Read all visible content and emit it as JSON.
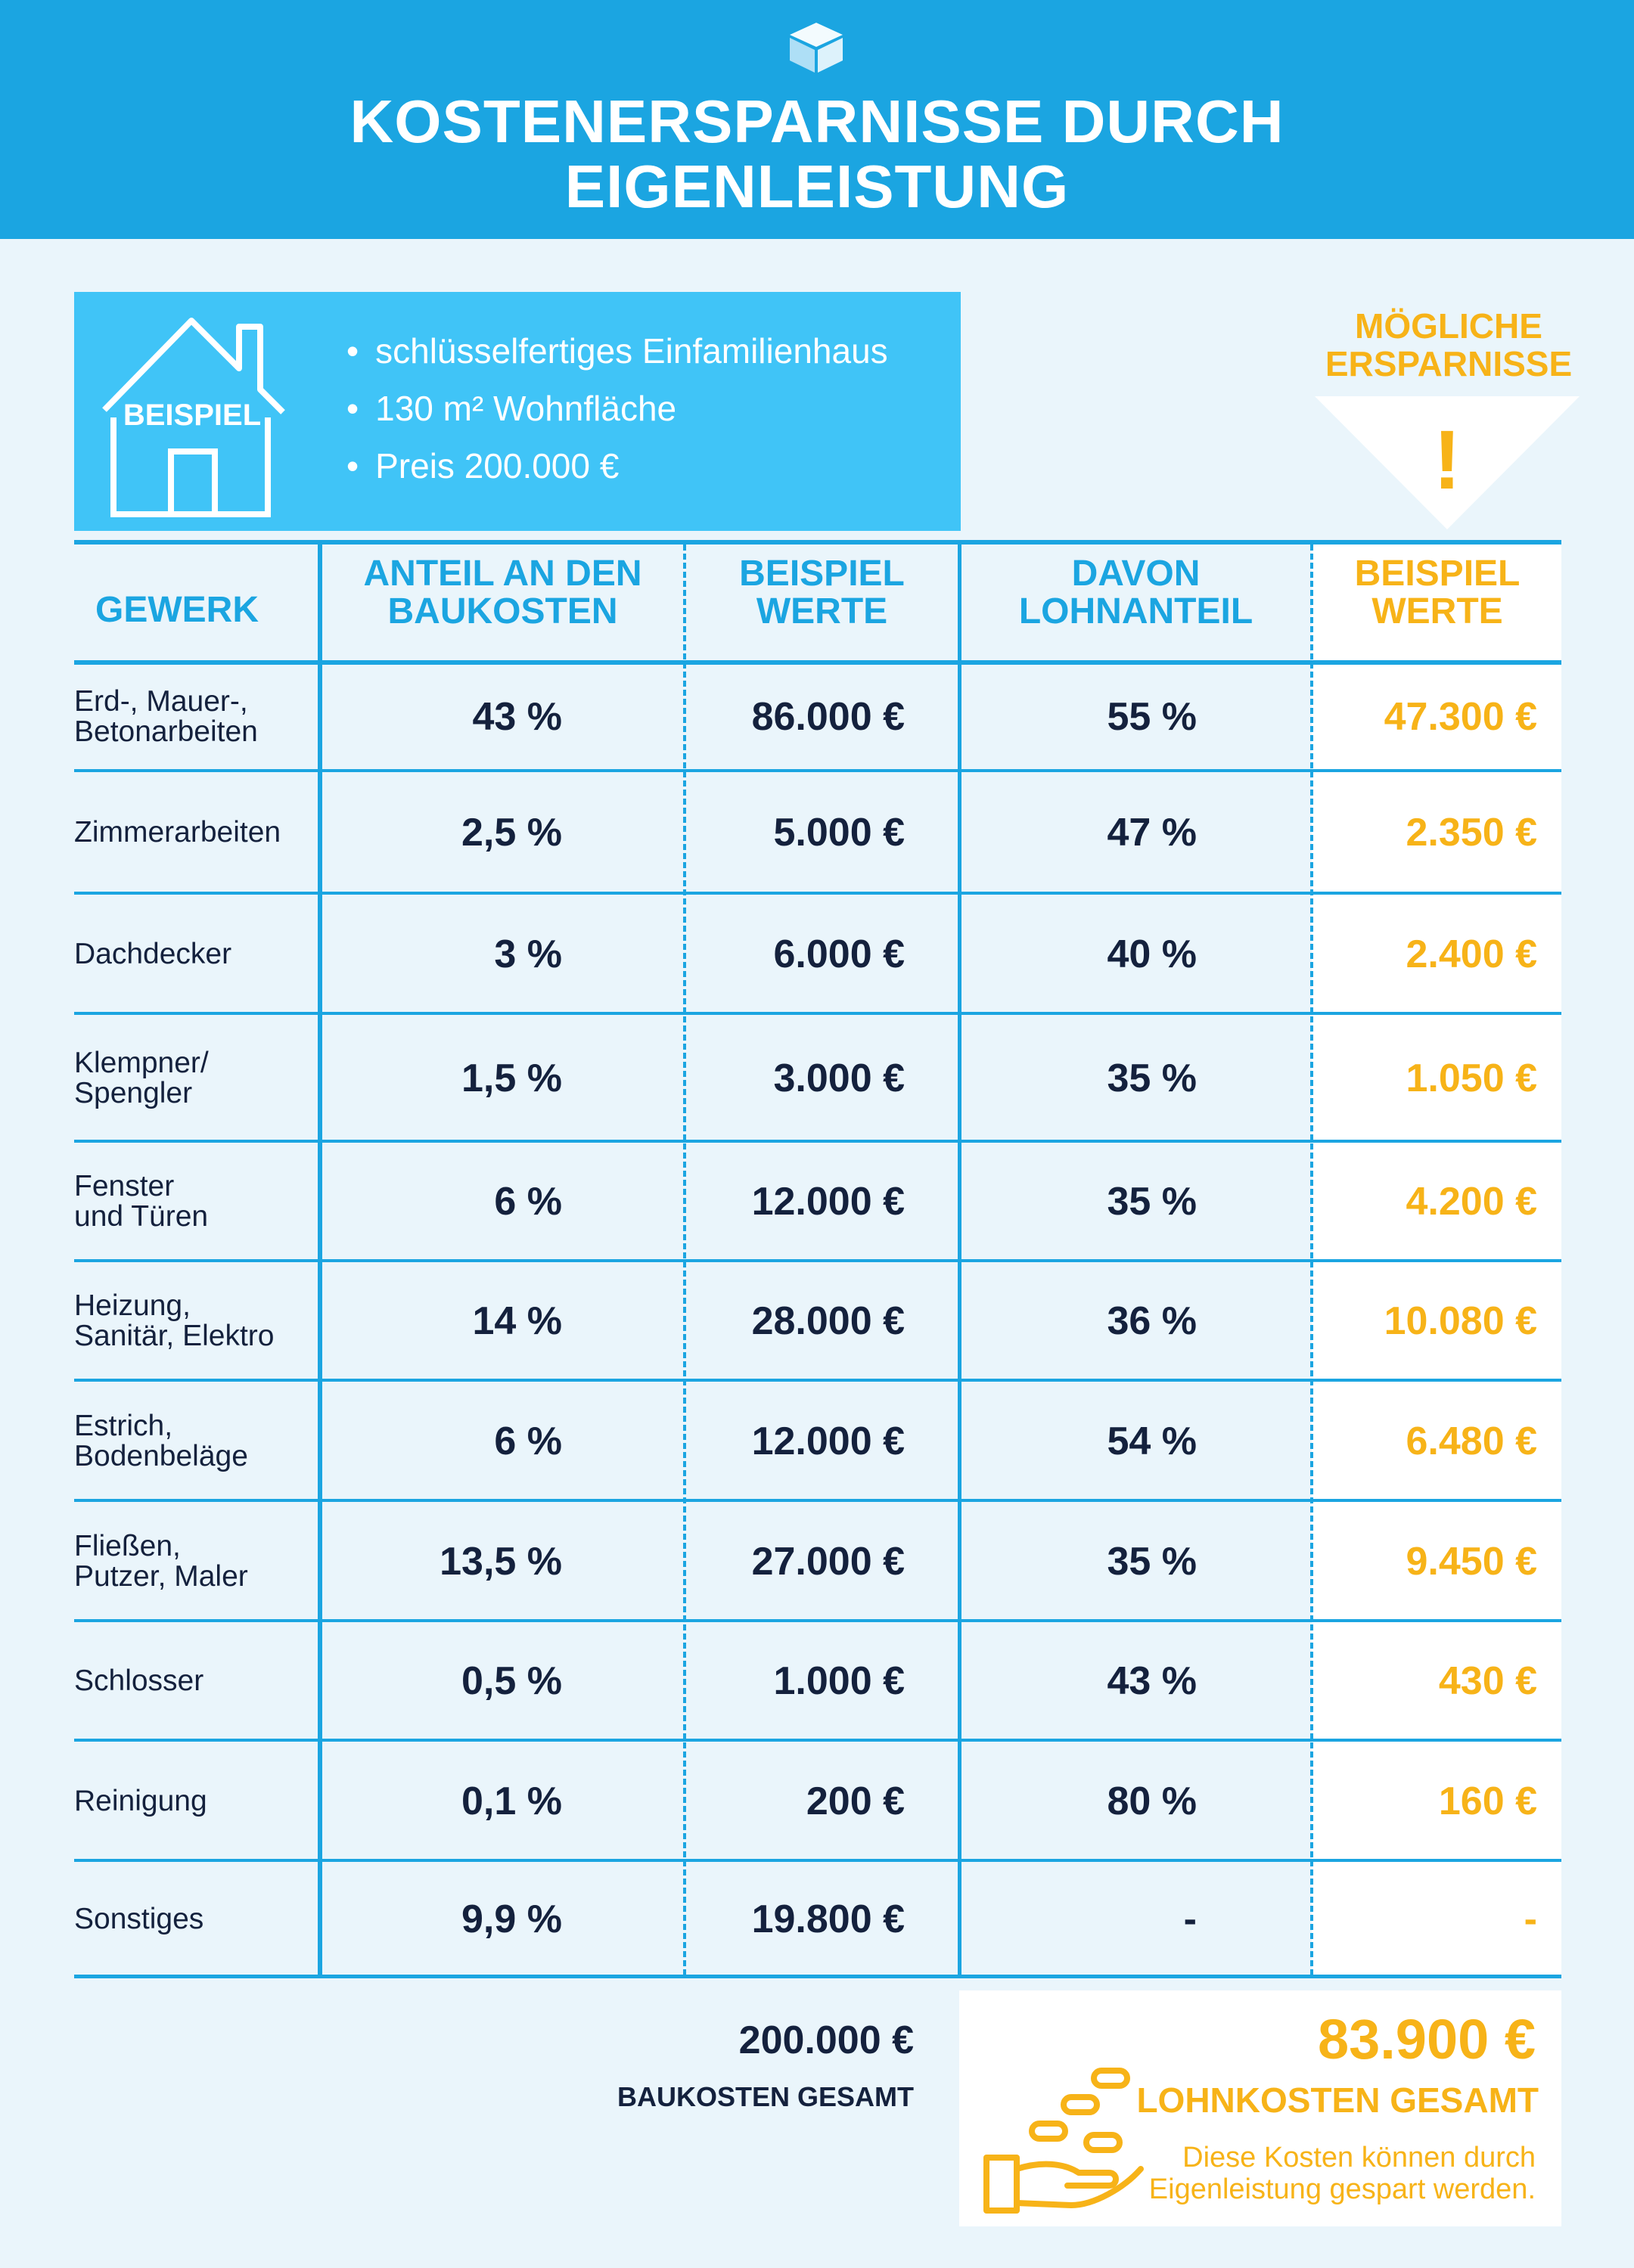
{
  "header": {
    "logo_icon": "cube-logo-icon",
    "title_line1": "KOSTENERSPARNISSE DURCH",
    "title_line2": "EIGENLEISTUNG"
  },
  "example": {
    "badge": "BEISPIEL",
    "items": [
      "schlüsselfertiges Einfamilienhaus",
      "130 m² Wohnfläche",
      "Preis 200.000 €"
    ]
  },
  "savings_heading": {
    "line1": "MÖGLICHE",
    "line2": "ERSPARNISSE",
    "mark": "!"
  },
  "table": {
    "headers": [
      {
        "line1": "GEWERK",
        "line2": ""
      },
      {
        "line1": "ANTEIL AN DEN",
        "line2": "BAUKOSTEN"
      },
      {
        "line1": "BEISPIEL",
        "line2": "WERTE"
      },
      {
        "line1": "DAVON",
        "line2": "LOHNANTEIL"
      },
      {
        "line1": "BEISPIEL",
        "line2": "WERTE"
      }
    ],
    "rows": [
      {
        "gewerk": "Erd-, Mauer-,\nBetonarbeiten",
        "anteil": "43 %",
        "wert": "86.000 €",
        "lohn": "55 %",
        "ersparnis": "47.300 €"
      },
      {
        "gewerk": "Zimmerarbeiten",
        "anteil": "2,5 %",
        "wert": "5.000 €",
        "lohn": "47 %",
        "ersparnis": "2.350 €"
      },
      {
        "gewerk": "Dachdecker",
        "anteil": "3 %",
        "wert": "6.000 €",
        "lohn": "40 %",
        "ersparnis": "2.400 €"
      },
      {
        "gewerk": "Klempner/\nSpengler",
        "anteil": "1,5 %",
        "wert": "3.000 €",
        "lohn": "35 %",
        "ersparnis": "1.050 €"
      },
      {
        "gewerk": "Fenster\nund Türen",
        "anteil": "6 %",
        "wert": "12.000 €",
        "lohn": "35 %",
        "ersparnis": "4.200 €"
      },
      {
        "gewerk": "Heizung,\nSanitär, Elektro",
        "anteil": "14 %",
        "wert": "28.000 €",
        "lohn": "36 %",
        "ersparnis": "10.080 €"
      },
      {
        "gewerk": "Estrich,\nBodenbeläge",
        "anteil": "6 %",
        "wert": "12.000 €",
        "lohn": "54 %",
        "ersparnis": "6.480 €"
      },
      {
        "gewerk": "Fließen,\nPutzer, Maler",
        "anteil": "13,5 %",
        "wert": "27.000 €",
        "lohn": "35 %",
        "ersparnis": "9.450 €"
      },
      {
        "gewerk": "Schlosser",
        "anteil": "0,5 %",
        "wert": "1.000 €",
        "lohn": "43 %",
        "ersparnis": "430 €"
      },
      {
        "gewerk": "Reinigung",
        "anteil": "0,1 %",
        "wert": "200 €",
        "lohn": "80 %",
        "ersparnis": "160 €"
      },
      {
        "gewerk": "Sonstiges",
        "anteil": "9,9 %",
        "wert": "19.800 €",
        "lohn": "-",
        "ersparnis": "-"
      }
    ]
  },
  "totals": {
    "baukosten_value": "200.000 €",
    "baukosten_label": "BAUKOSTEN GESAMT",
    "lohnkosten_value": "83.900 €",
    "lohnkosten_label": "LOHNKOSTEN GESAMT",
    "note_line1": "Diese Kosten können durch",
    "note_line2": "Eigenleistung gespart werden.",
    "hand_icon": "hand-coins-icon"
  },
  "colors": {
    "blue": "#1ba5e1",
    "light_blue": "#40c4f7",
    "orange": "#f7b318",
    "navy": "#14213d",
    "background": "#eaf5fb"
  }
}
